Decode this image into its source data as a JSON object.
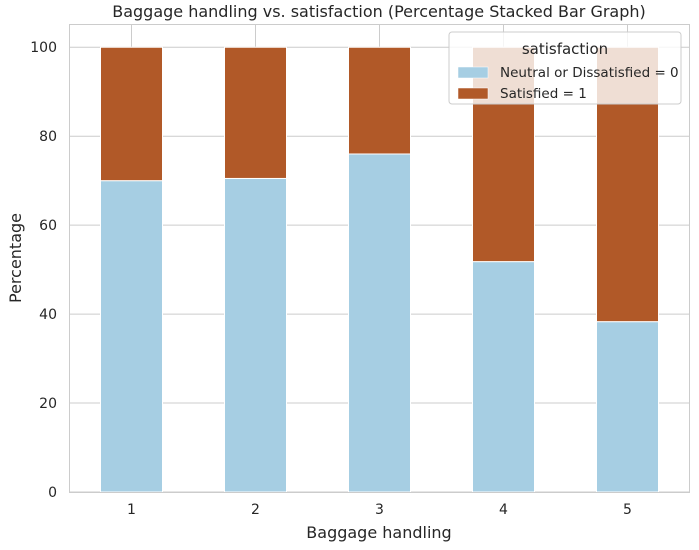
{
  "chart_data": {
    "type": "bar",
    "stacked": true,
    "title": "Baggage handling vs. satisfaction (Percentage Stacked Bar Graph)",
    "xlabel": "Baggage handling",
    "ylabel": "Percentage",
    "categories": [
      "1",
      "2",
      "3",
      "4",
      "5"
    ],
    "ylim": [
      0,
      105
    ],
    "yticks": [
      "0",
      "20",
      "40",
      "60",
      "80",
      "100"
    ],
    "grid": true,
    "legend": {
      "title": "satisfaction",
      "placement": "top-right"
    },
    "series": [
      {
        "name": "Neutral or Dissatisfied = 0",
        "color": "#a6cee3",
        "values": [
          70.0,
          70.5,
          76.0,
          51.8,
          38.3
        ]
      },
      {
        "name": "Satisfied = 1",
        "color": "#b15928",
        "values": [
          30.0,
          29.5,
          24.0,
          48.2,
          61.7
        ]
      }
    ]
  }
}
